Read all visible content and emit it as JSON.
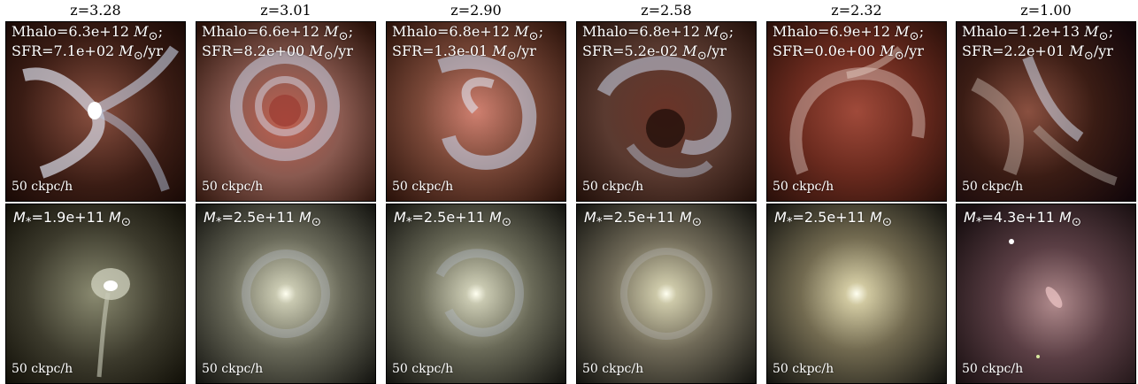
{
  "columns": [
    {
      "redshift": "z=3.28",
      "mhalo": "Mhalo=6.3e+12",
      "sfr": "SFR=7.1e+02",
      "mstar": "=1.9e+11",
      "scale": "50 ckpc/h"
    },
    {
      "redshift": "z=3.01",
      "mhalo": "Mhalo=6.6e+12",
      "sfr": "SFR=8.2e+00",
      "mstar": "=2.5e+11",
      "scale": "50 ckpc/h"
    },
    {
      "redshift": "z=2.90",
      "mhalo": "Mhalo=6.8e+12",
      "sfr": "SFR=1.3e-01",
      "mstar": "=2.5e+11",
      "scale": "50 ckpc/h"
    },
    {
      "redshift": "z=2.58",
      "mhalo": "Mhalo=6.8e+12",
      "sfr": "SFR=5.2e-02",
      "mstar": "=2.5e+11",
      "scale": "50 ckpc/h"
    },
    {
      "redshift": "z=2.32",
      "mhalo": "Mhalo=6.9e+12",
      "sfr": "SFR=0.0e+00",
      "mstar": "=2.5e+11",
      "scale": "50 ckpc/h"
    },
    {
      "redshift": "z=1.00",
      "mhalo": "Mhalo=1.2e+13",
      "sfr": "SFR=2.2e+01",
      "mstar": "=4.3e+11",
      "scale": "50 ckpc/h"
    }
  ],
  "units": {
    "msun": "M",
    "sun_symbol": "⊙",
    "mhalo_suffix": ";",
    "sfr_suffix": "/yr",
    "mstar_symbol": "M",
    "mstar_sub": "*"
  }
}
